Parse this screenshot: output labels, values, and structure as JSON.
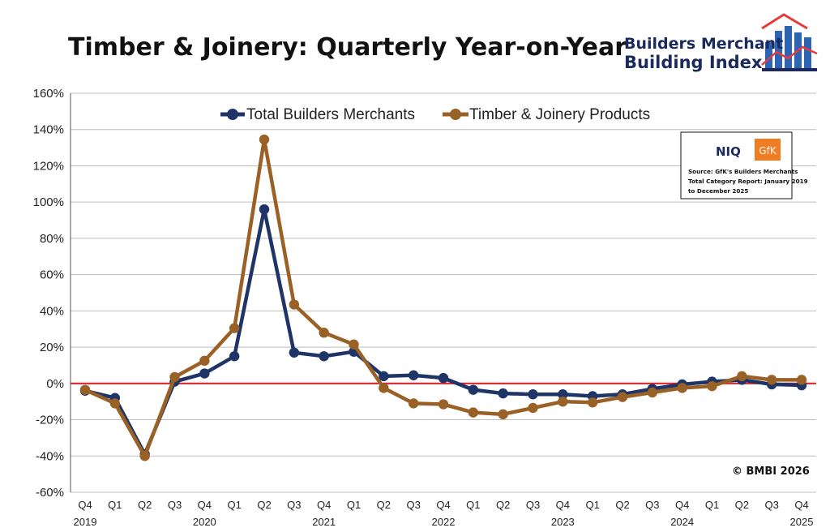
{
  "chart_data": {
    "type": "line",
    "title": "Timber & Joinery: Quarterly Year-on-Year",
    "xlabel": "",
    "ylabel": "",
    "ylim": [
      -60,
      160
    ],
    "yticks": [
      "160%",
      "140%",
      "120%",
      "100%",
      "80%",
      "60%",
      "40%",
      "20%",
      "0%",
      "-20%",
      "-40%",
      "-60%"
    ],
    "quarters": [
      "Q4",
      "Q1",
      "Q2",
      "Q3",
      "Q4",
      "Q1",
      "Q2",
      "Q3",
      "Q4",
      "Q1",
      "Q2",
      "Q3",
      "Q4",
      "Q1",
      "Q2",
      "Q3",
      "Q4",
      "Q1",
      "Q2",
      "Q3",
      "Q4",
      "Q1",
      "Q2",
      "Q3",
      "Q4"
    ],
    "years": [
      "2019",
      "2020",
      "2021",
      "2022",
      "2023",
      "2024",
      "2025"
    ],
    "series": [
      {
        "name": "Total Builders Merchants",
        "color": "#1f3467",
        "values": [
          -4,
          -8,
          -39,
          1,
          5.5,
          15,
          96,
          17,
          15,
          17.5,
          4,
          4.5,
          3,
          -3.5,
          -5.5,
          -6,
          -6,
          -7,
          -6,
          -3,
          -0.5,
          1,
          2,
          -0.5,
          -1
        ]
      },
      {
        "name": "Timber & Joinery Products",
        "color": "#9a6126",
        "values": [
          -3.5,
          -11,
          -40,
          3.5,
          12.5,
          30.5,
          134.5,
          43.5,
          28,
          21.5,
          -2.5,
          -11,
          -11.5,
          -16,
          -17,
          -13.5,
          -10,
          -10.5,
          -7.5,
          -5,
          -2.5,
          -1.5,
          4,
          2,
          2
        ]
      }
    ],
    "zero_line_color": "#d9262c",
    "legend_position": "top-center",
    "grid": true
  },
  "logo": {
    "line1": "Builders Merchant",
    "line2": "Building Index",
    "brand_color": "#1b2a5c",
    "accent_color": "#e63a3a",
    "bar_color": "#2d64b3"
  },
  "source_box": {
    "brand1": "NIQ",
    "brand2": "GfK",
    "brand2_color": "#f07d22",
    "lines": [
      "Source: GfK's Builders Merchants",
      "Total Category Report: January 2019",
      "to December 2025"
    ]
  },
  "copyright": "© BMBI 2026"
}
